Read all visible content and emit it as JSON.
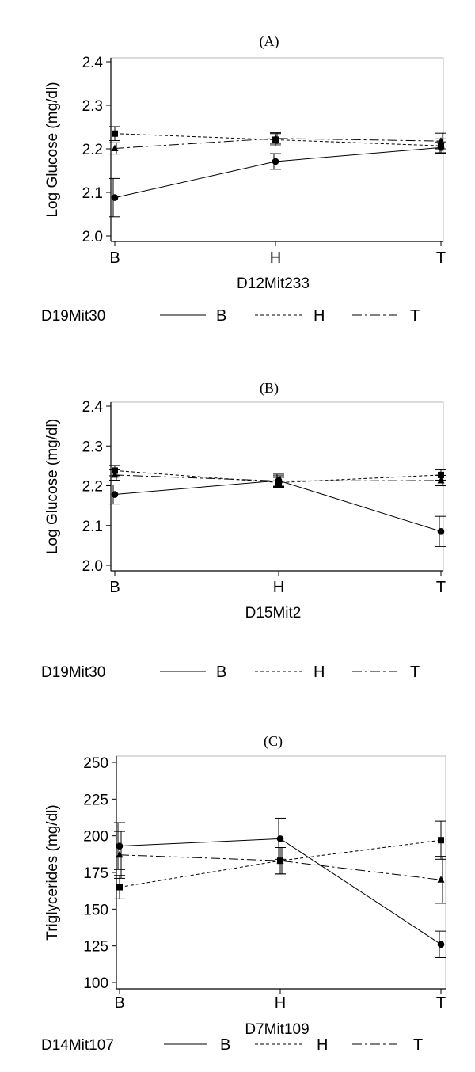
{
  "chart_data": [
    {
      "panel_label": "(A)",
      "type": "line",
      "categories": [
        "B",
        "H",
        "T"
      ],
      "xlabel": "D12Mit233",
      "ylabel": "Log Glucose  (mg/dl)",
      "ylim": [
        2.0,
        2.4
      ],
      "yticks": [
        "2.0",
        "2.1",
        "2.2",
        "2.3",
        "2.4"
      ],
      "grid": false,
      "legend": {
        "title": "D19Mit30",
        "placement": "bottom",
        "entries": [
          "B",
          "H",
          "T"
        ]
      },
      "series": [
        {
          "name": "B",
          "marker": "circle",
          "dash": "solid",
          "values": [
            2.088,
            2.171,
            2.203
          ],
          "err": [
            0.044,
            0.018,
            0.013
          ]
        },
        {
          "name": "H",
          "marker": "square",
          "dash": "dash",
          "values": [
            2.235,
            2.221,
            2.207
          ],
          "err": [
            0.016,
            0.014,
            0.016
          ]
        },
        {
          "name": "T",
          "marker": "triangle",
          "dash": "dashdot",
          "values": [
            2.201,
            2.224,
            2.218
          ],
          "err": [
            0.013,
            0.013,
            0.018
          ]
        }
      ]
    },
    {
      "panel_label": "(B)",
      "type": "line",
      "categories": [
        "B",
        "H",
        "T"
      ],
      "xlabel": "D15Mit2",
      "ylabel": "Log Glucose  (mg/dl)",
      "ylim": [
        2.0,
        2.4
      ],
      "yticks": [
        "2.0",
        "2.1",
        "2.2",
        "2.3",
        "2.4"
      ],
      "grid": false,
      "legend": {
        "title": "D19Mit30",
        "placement": "bottom",
        "entries": [
          "B",
          "H",
          "T"
        ]
      },
      "series": [
        {
          "name": "B",
          "marker": "circle",
          "dash": "solid",
          "values": [
            2.178,
            2.213,
            2.085
          ],
          "err": [
            0.024,
            0.016,
            0.038
          ]
        },
        {
          "name": "H",
          "marker": "square",
          "dash": "dash",
          "values": [
            2.238,
            2.208,
            2.227
          ],
          "err": [
            0.013,
            0.013,
            0.013
          ]
        },
        {
          "name": "T",
          "marker": "triangle",
          "dash": "dashdot",
          "values": [
            2.227,
            2.212,
            2.213
          ],
          "err": [
            0.013,
            0.013,
            0.013
          ]
        }
      ]
    },
    {
      "panel_label": "(C)",
      "type": "line",
      "categories": [
        "B",
        "H",
        "T"
      ],
      "xlabel": "D7Mit109",
      "ylabel": "Triglycerides  (mg/dl)",
      "ylim": [
        100,
        250
      ],
      "yticks": [
        "100",
        "125",
        "150",
        "175",
        "200",
        "225",
        "250"
      ],
      "grid": false,
      "legend": {
        "title": "D14Mit107",
        "placement": "bottom",
        "entries": [
          "B",
          "H",
          "T"
        ]
      },
      "series": [
        {
          "name": "B",
          "marker": "circle",
          "dash": "solid",
          "values": [
            193,
            198,
            126
          ],
          "err": [
            16,
            14,
            9
          ]
        },
        {
          "name": "H",
          "marker": "square",
          "dash": "dash",
          "values": [
            165,
            183,
            197
          ],
          "err": [
            8,
            9,
            13
          ]
        },
        {
          "name": "T",
          "marker": "triangle",
          "dash": "dashdot",
          "values": [
            187,
            183,
            170
          ],
          "err": [
            16,
            9,
            16
          ]
        }
      ]
    }
  ]
}
